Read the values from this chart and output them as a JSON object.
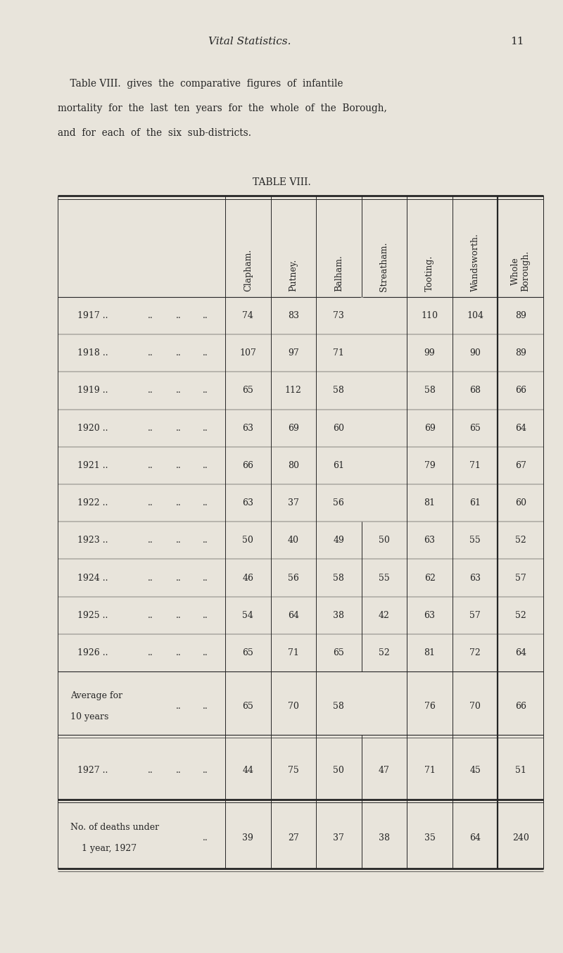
{
  "bg_color": "#e8e4db",
  "page_title_italic": "Vital Statistics.",
  "page_number": "11",
  "intro_line1": "    Table VIII.  gives  the  comparative  figures  of  infantile",
  "intro_line2": "mortality  for  the  last  ten  years  for  the  whole  of  the  Borough,",
  "intro_line3": "and  for  each  of  the  six  sub-districts.",
  "table_title": "TABLE VIII.",
  "columns": [
    "Clapham.",
    "Putney.",
    "Balham.",
    "Streatham.",
    "Tooting.",
    "Wandsworth.",
    "Whole\nBorough."
  ],
  "rows": [
    {
      "label": "1917 ..",
      "extra_dots": ".. ..",
      "values": [
        "74",
        "83",
        "73",
        "",
        "110",
        "104",
        "89"
      ]
    },
    {
      "label": "1918 ..",
      "extra_dots": ".. ..",
      "values": [
        "107",
        "97",
        "71",
        "",
        "99",
        "90",
        "89"
      ]
    },
    {
      "label": "1919 ..",
      "extra_dots": ".. ..",
      "values": [
        "65",
        "112",
        "58",
        "",
        "58",
        "68",
        "66"
      ]
    },
    {
      "label": "1920 ..",
      "extra_dots": ".. ..",
      "values": [
        "63",
        "69",
        "60",
        "",
        "69",
        "65",
        "64"
      ]
    },
    {
      "label": "1921 ..",
      "extra_dots": ".. ..",
      "values": [
        "66",
        "80",
        "61",
        "",
        "79",
        "71",
        "67"
      ]
    },
    {
      "label": "1922 ..",
      "extra_dots": ".. ..",
      "values": [
        "63",
        "37",
        "56",
        "",
        "81",
        "61",
        "60"
      ]
    },
    {
      "label": "1923 ..",
      "extra_dots": ".. ..",
      "values": [
        "50",
        "40",
        "49",
        "50",
        "63",
        "55",
        "52"
      ]
    },
    {
      "label": "1924 ..",
      "extra_dots": ".. ..",
      "values": [
        "46",
        "56",
        "58",
        "55",
        "62",
        "63",
        "57"
      ]
    },
    {
      "label": "1925 ..",
      "extra_dots": ".. ..",
      "values": [
        "54",
        "64",
        "38",
        "42",
        "63",
        "57",
        "52"
      ]
    },
    {
      "label": "1926 ..",
      "extra_dots": ".. ..",
      "values": [
        "65",
        "71",
        "65",
        "52",
        "81",
        "72",
        "64"
      ]
    }
  ],
  "avg_label1": "Average for",
  "avg_label2": "10 years",
  "avg_dots": ".. ..",
  "avg_values": [
    "65",
    "70",
    "58",
    "",
    "76",
    "70",
    "66"
  ],
  "row1927_label": "1927 ..",
  "row1927_dots": ".. ..",
  "row1927_values": [
    "44",
    "75",
    "50",
    "47",
    "71",
    "45",
    "51"
  ],
  "deaths_label1": "No. of deaths under",
  "deaths_label2": "    1 year, 1927",
  "deaths_dots": "..",
  "deaths_values": [
    "39",
    "27",
    "37",
    "38",
    "35",
    "64",
    "240"
  ],
  "text_color": "#252525",
  "line_color": "#252525",
  "font_size_header": 9,
  "font_size_body": 9,
  "font_size_title_page": 11,
  "font_size_table_title": 10
}
